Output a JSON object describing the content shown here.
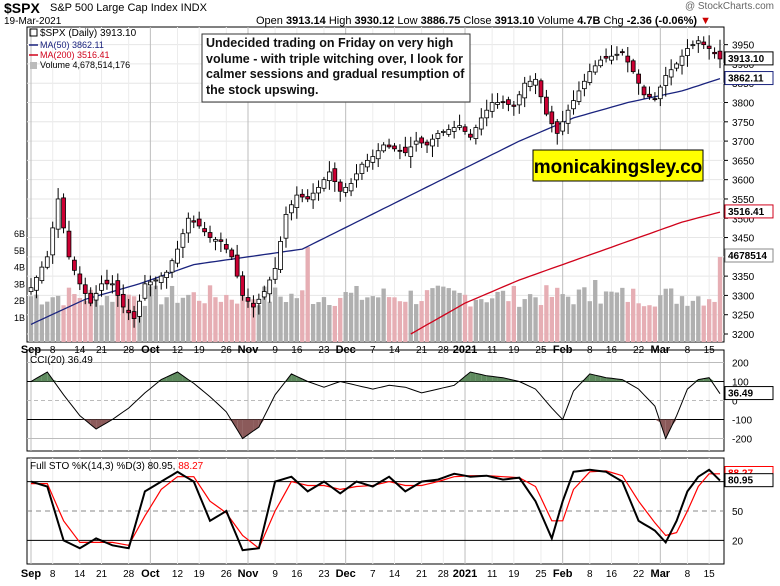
{
  "header": {
    "symbol": "$SPX",
    "name": "S&P 500 Large Cap Index INDX",
    "date": "19-Mar-2021",
    "credit": "@ StockCharts.com",
    "open_label": "Open",
    "open": "3913.14",
    "high_label": "High",
    "high": "3930.12",
    "low_label": "Low",
    "low": "3886.75",
    "close_label": "Close",
    "close": "3913.10",
    "volume_label": "Volume",
    "volume": "4.7B",
    "chg_label": "Chg",
    "chg": "-2.36 (-0.06%)"
  },
  "legend": {
    "price": "$SPX (Daily) 3913.10",
    "ma50": "MA(50) 3862.11",
    "ma200": "MA(200) 3516.41",
    "volume": "Volume 4,678,514,176"
  },
  "annotation": "Undecided trading on Friday on very high volume - with triple witching over, I look for calmer sessions and gradual resumption of the stock upswing.",
  "watermark": "monicakingsley.co",
  "colors": {
    "up": "#ffffff",
    "down": "#cc0033",
    "ma50": "#1a237e",
    "ma200": "#d0021b",
    "vol_up": "#b0b0b0",
    "vol_down": "#e6aeb4",
    "cci_fill": "#5e8a5e",
    "cci_neg_fill": "#8b5a5a",
    "stoK": "#000000",
    "stoD": "#ff0000",
    "watermark_bg": "#ffff00"
  },
  "price_panel": {
    "y_ticks": [
      "3950",
      "3900",
      "3850",
      "3800",
      "3750",
      "3700",
      "3650",
      "3600",
      "3550",
      "3500",
      "3450",
      "3400",
      "3350",
      "3300",
      "3250",
      "3200"
    ],
    "vol_ticks": [
      "6B",
      "5B",
      "4B",
      "3B",
      "2B",
      "1B"
    ],
    "last_close_label": "3913.10",
    "ma50_label": "3862.11",
    "ma200_label": "3516.41",
    "volume_label": "4678514"
  },
  "cci_panel": {
    "legend": "CCI(20) 36.49",
    "y_ticks": [
      "200",
      "100",
      "0",
      "-100",
      "-200"
    ],
    "last_label": "36.49"
  },
  "sto_panel": {
    "legend_prefix": "Full STO %K(14,3) %D(3)",
    "legend_k": "80.95",
    "legend_d": "88.27",
    "y_ticks": [
      "80",
      "50",
      "20"
    ],
    "d_label": "88.27",
    "k_label": "80.95"
  },
  "x_axis": {
    "labels": [
      {
        "t": "Sep",
        "bold": true
      },
      {
        "t": "8"
      },
      {
        "t": "14"
      },
      {
        "t": "21"
      },
      {
        "t": "28"
      },
      {
        "t": "Oct",
        "bold": true
      },
      {
        "t": "12"
      },
      {
        "t": "19"
      },
      {
        "t": "26"
      },
      {
        "t": "Nov",
        "bold": true
      },
      {
        "t": "9"
      },
      {
        "t": "16"
      },
      {
        "t": "23"
      },
      {
        "t": "Dec",
        "bold": true
      },
      {
        "t": "7"
      },
      {
        "t": "14"
      },
      {
        "t": "21"
      },
      {
        "t": "28"
      },
      {
        "t": "2021",
        "bold": true
      },
      {
        "t": "11"
      },
      {
        "t": "19"
      },
      {
        "t": "25"
      },
      {
        "t": "Feb",
        "bold": true
      },
      {
        "t": "8"
      },
      {
        "t": "16"
      },
      {
        "t": "22"
      },
      {
        "t": "Mar",
        "bold": true
      },
      {
        "t": "8"
      },
      {
        "t": "15"
      }
    ]
  },
  "chart_data": {
    "type": "candlestick",
    "title": "$SPX (Daily)",
    "ylim": [
      3200,
      3975
    ],
    "price_anchors": [
      {
        "x": 0,
        "close": 3320
      },
      {
        "x": 3,
        "close": 3400
      },
      {
        "x": 5,
        "close": 3550
      },
      {
        "x": 7,
        "close": 3400
      },
      {
        "x": 9,
        "close": 3330
      },
      {
        "x": 11,
        "close": 3280
      },
      {
        "x": 13,
        "close": 3330
      },
      {
        "x": 15,
        "close": 3330
      },
      {
        "x": 17,
        "close": 3270
      },
      {
        "x": 19,
        "close": 3240
      },
      {
        "x": 21,
        "close": 3330
      },
      {
        "x": 23,
        "close": 3340
      },
      {
        "x": 25,
        "close": 3360
      },
      {
        "x": 27,
        "close": 3420
      },
      {
        "x": 29,
        "close": 3500
      },
      {
        "x": 31,
        "close": 3480
      },
      {
        "x": 33,
        "close": 3450
      },
      {
        "x": 35,
        "close": 3440
      },
      {
        "x": 37,
        "close": 3400
      },
      {
        "x": 39,
        "close": 3300
      },
      {
        "x": 41,
        "close": 3270
      },
      {
        "x": 43,
        "close": 3310
      },
      {
        "x": 45,
        "close": 3370
      },
      {
        "x": 47,
        "close": 3510
      },
      {
        "x": 49,
        "close": 3560
      },
      {
        "x": 51,
        "close": 3550
      },
      {
        "x": 53,
        "close": 3580
      },
      {
        "x": 55,
        "close": 3620
      },
      {
        "x": 57,
        "close": 3570
      },
      {
        "x": 59,
        "close": 3590
      },
      {
        "x": 61,
        "close": 3640
      },
      {
        "x": 63,
        "close": 3660
      },
      {
        "x": 65,
        "close": 3690
      },
      {
        "x": 67,
        "close": 3680
      },
      {
        "x": 69,
        "close": 3670
      },
      {
        "x": 71,
        "close": 3700
      },
      {
        "x": 73,
        "close": 3690
      },
      {
        "x": 75,
        "close": 3720
      },
      {
        "x": 77,
        "close": 3730
      },
      {
        "x": 79,
        "close": 3740
      },
      {
        "x": 81,
        "close": 3710
      },
      {
        "x": 83,
        "close": 3760
      },
      {
        "x": 85,
        "close": 3800
      },
      {
        "x": 87,
        "close": 3800
      },
      {
        "x": 89,
        "close": 3790
      },
      {
        "x": 91,
        "close": 3850
      },
      {
        "x": 93,
        "close": 3860
      },
      {
        "x": 95,
        "close": 3770
      },
      {
        "x": 97,
        "close": 3720
      },
      {
        "x": 99,
        "close": 3780
      },
      {
        "x": 101,
        "close": 3830
      },
      {
        "x": 103,
        "close": 3880
      },
      {
        "x": 105,
        "close": 3910
      },
      {
        "x": 107,
        "close": 3920
      },
      {
        "x": 109,
        "close": 3930
      },
      {
        "x": 111,
        "close": 3880
      },
      {
        "x": 113,
        "close": 3820
      },
      {
        "x": 115,
        "close": 3810
      },
      {
        "x": 117,
        "close": 3870
      },
      {
        "x": 119,
        "close": 3900
      },
      {
        "x": 121,
        "close": 3940
      },
      {
        "x": 123,
        "close": 3960
      },
      {
        "x": 125,
        "close": 3940
      },
      {
        "x": 127,
        "close": 3913
      }
    ],
    "ma50_anchors": [
      {
        "x": 0,
        "v": 3225
      },
      {
        "x": 10,
        "v": 3290
      },
      {
        "x": 20,
        "v": 3330
      },
      {
        "x": 30,
        "v": 3380
      },
      {
        "x": 40,
        "v": 3400
      },
      {
        "x": 50,
        "v": 3420
      },
      {
        "x": 60,
        "v": 3490
      },
      {
        "x": 70,
        "v": 3560
      },
      {
        "x": 80,
        "v": 3630
      },
      {
        "x": 90,
        "v": 3700
      },
      {
        "x": 100,
        "v": 3760
      },
      {
        "x": 110,
        "v": 3800
      },
      {
        "x": 120,
        "v": 3830
      },
      {
        "x": 127,
        "v": 3862
      }
    ],
    "ma200_anchors": [
      {
        "x": 70,
        "v": 3200
      },
      {
        "x": 80,
        "v": 3280
      },
      {
        "x": 90,
        "v": 3340
      },
      {
        "x": 100,
        "v": 3390
      },
      {
        "x": 110,
        "v": 3440
      },
      {
        "x": 120,
        "v": 3490
      },
      {
        "x": 127,
        "v": 3516
      }
    ],
    "cci_anchors": [
      {
        "x": 0,
        "v": 100
      },
      {
        "x": 3,
        "v": 150
      },
      {
        "x": 6,
        "v": 30
      },
      {
        "x": 9,
        "v": -80
      },
      {
        "x": 12,
        "v": -150
      },
      {
        "x": 15,
        "v": -100
      },
      {
        "x": 18,
        "v": -40
      },
      {
        "x": 21,
        "v": 40
      },
      {
        "x": 24,
        "v": 110
      },
      {
        "x": 27,
        "v": 150
      },
      {
        "x": 30,
        "v": 90
      },
      {
        "x": 33,
        "v": 20
      },
      {
        "x": 36,
        "v": -60
      },
      {
        "x": 39,
        "v": -200
      },
      {
        "x": 42,
        "v": -140
      },
      {
        "x": 45,
        "v": 30
      },
      {
        "x": 48,
        "v": 140
      },
      {
        "x": 51,
        "v": 100
      },
      {
        "x": 54,
        "v": 70
      },
      {
        "x": 57,
        "v": 100
      },
      {
        "x": 60,
        "v": 80
      },
      {
        "x": 63,
        "v": 60
      },
      {
        "x": 66,
        "v": 80
      },
      {
        "x": 69,
        "v": 70
      },
      {
        "x": 72,
        "v": 40
      },
      {
        "x": 75,
        "v": 60
      },
      {
        "x": 78,
        "v": 80
      },
      {
        "x": 81,
        "v": 150
      },
      {
        "x": 84,
        "v": 130
      },
      {
        "x": 87,
        "v": 120
      },
      {
        "x": 90,
        "v": 100
      },
      {
        "x": 93,
        "v": 60
      },
      {
        "x": 96,
        "v": -40
      },
      {
        "x": 98,
        "v": -100
      },
      {
        "x": 100,
        "v": 50
      },
      {
        "x": 103,
        "v": 140
      },
      {
        "x": 106,
        "v": 120
      },
      {
        "x": 109,
        "v": 110
      },
      {
        "x": 112,
        "v": 60
      },
      {
        "x": 115,
        "v": -30
      },
      {
        "x": 117,
        "v": -200
      },
      {
        "x": 119,
        "v": -80
      },
      {
        "x": 121,
        "v": 60
      },
      {
        "x": 123,
        "v": 110
      },
      {
        "x": 125,
        "v": 120
      },
      {
        "x": 127,
        "v": 36
      }
    ],
    "stoK_anchors": [
      {
        "x": 0,
        "v": 80
      },
      {
        "x": 3,
        "v": 75
      },
      {
        "x": 6,
        "v": 20
      },
      {
        "x": 9,
        "v": 12
      },
      {
        "x": 12,
        "v": 22
      },
      {
        "x": 15,
        "v": 15
      },
      {
        "x": 18,
        "v": 12
      },
      {
        "x": 21,
        "v": 70
      },
      {
        "x": 24,
        "v": 80
      },
      {
        "x": 27,
        "v": 90
      },
      {
        "x": 30,
        "v": 80
      },
      {
        "x": 33,
        "v": 40
      },
      {
        "x": 36,
        "v": 50
      },
      {
        "x": 39,
        "v": 10
      },
      {
        "x": 42,
        "v": 12
      },
      {
        "x": 45,
        "v": 80
      },
      {
        "x": 48,
        "v": 85
      },
      {
        "x": 51,
        "v": 70
      },
      {
        "x": 54,
        "v": 80
      },
      {
        "x": 57,
        "v": 68
      },
      {
        "x": 60,
        "v": 80
      },
      {
        "x": 63,
        "v": 75
      },
      {
        "x": 66,
        "v": 85
      },
      {
        "x": 69,
        "v": 70
      },
      {
        "x": 72,
        "v": 80
      },
      {
        "x": 75,
        "v": 82
      },
      {
        "x": 78,
        "v": 88
      },
      {
        "x": 81,
        "v": 85
      },
      {
        "x": 84,
        "v": 86
      },
      {
        "x": 87,
        "v": 82
      },
      {
        "x": 90,
        "v": 84
      },
      {
        "x": 93,
        "v": 60
      },
      {
        "x": 96,
        "v": 22
      },
      {
        "x": 98,
        "v": 60
      },
      {
        "x": 100,
        "v": 90
      },
      {
        "x": 103,
        "v": 92
      },
      {
        "x": 106,
        "v": 90
      },
      {
        "x": 109,
        "v": 80
      },
      {
        "x": 112,
        "v": 40
      },
      {
        "x": 115,
        "v": 30
      },
      {
        "x": 117,
        "v": 18
      },
      {
        "x": 119,
        "v": 40
      },
      {
        "x": 121,
        "v": 70
      },
      {
        "x": 123,
        "v": 85
      },
      {
        "x": 125,
        "v": 92
      },
      {
        "x": 127,
        "v": 81
      }
    ],
    "stoD_anchors": [
      {
        "x": 0,
        "v": 78
      },
      {
        "x": 3,
        "v": 78
      },
      {
        "x": 6,
        "v": 40
      },
      {
        "x": 9,
        "v": 18
      },
      {
        "x": 12,
        "v": 18
      },
      {
        "x": 15,
        "v": 18
      },
      {
        "x": 18,
        "v": 15
      },
      {
        "x": 21,
        "v": 45
      },
      {
        "x": 24,
        "v": 72
      },
      {
        "x": 27,
        "v": 85
      },
      {
        "x": 30,
        "v": 85
      },
      {
        "x": 33,
        "v": 60
      },
      {
        "x": 36,
        "v": 48
      },
      {
        "x": 39,
        "v": 25
      },
      {
        "x": 42,
        "v": 12
      },
      {
        "x": 45,
        "v": 50
      },
      {
        "x": 48,
        "v": 80
      },
      {
        "x": 51,
        "v": 76
      },
      {
        "x": 54,
        "v": 76
      },
      {
        "x": 57,
        "v": 72
      },
      {
        "x": 60,
        "v": 75
      },
      {
        "x": 63,
        "v": 76
      },
      {
        "x": 66,
        "v": 80
      },
      {
        "x": 69,
        "v": 76
      },
      {
        "x": 72,
        "v": 76
      },
      {
        "x": 75,
        "v": 80
      },
      {
        "x": 78,
        "v": 85
      },
      {
        "x": 81,
        "v": 86
      },
      {
        "x": 84,
        "v": 86
      },
      {
        "x": 87,
        "v": 85
      },
      {
        "x": 90,
        "v": 84
      },
      {
        "x": 93,
        "v": 75
      },
      {
        "x": 96,
        "v": 40
      },
      {
        "x": 98,
        "v": 40
      },
      {
        "x": 100,
        "v": 72
      },
      {
        "x": 103,
        "v": 90
      },
      {
        "x": 106,
        "v": 91
      },
      {
        "x": 109,
        "v": 86
      },
      {
        "x": 112,
        "v": 60
      },
      {
        "x": 115,
        "v": 38
      },
      {
        "x": 117,
        "v": 25
      },
      {
        "x": 119,
        "v": 28
      },
      {
        "x": 121,
        "v": 50
      },
      {
        "x": 123,
        "v": 75
      },
      {
        "x": 125,
        "v": 88
      },
      {
        "x": 127,
        "v": 88
      }
    ]
  }
}
